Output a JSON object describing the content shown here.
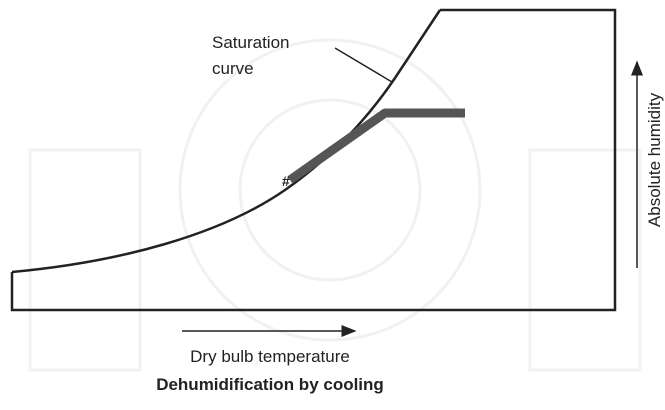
{
  "diagram": {
    "curve_label": [
      "Saturation",
      "curve"
    ],
    "y_axis_label": "Absolute humidity",
    "x_axis_label": "Dry bulb temperature",
    "caption": "Dehumidification by cooling"
  }
}
